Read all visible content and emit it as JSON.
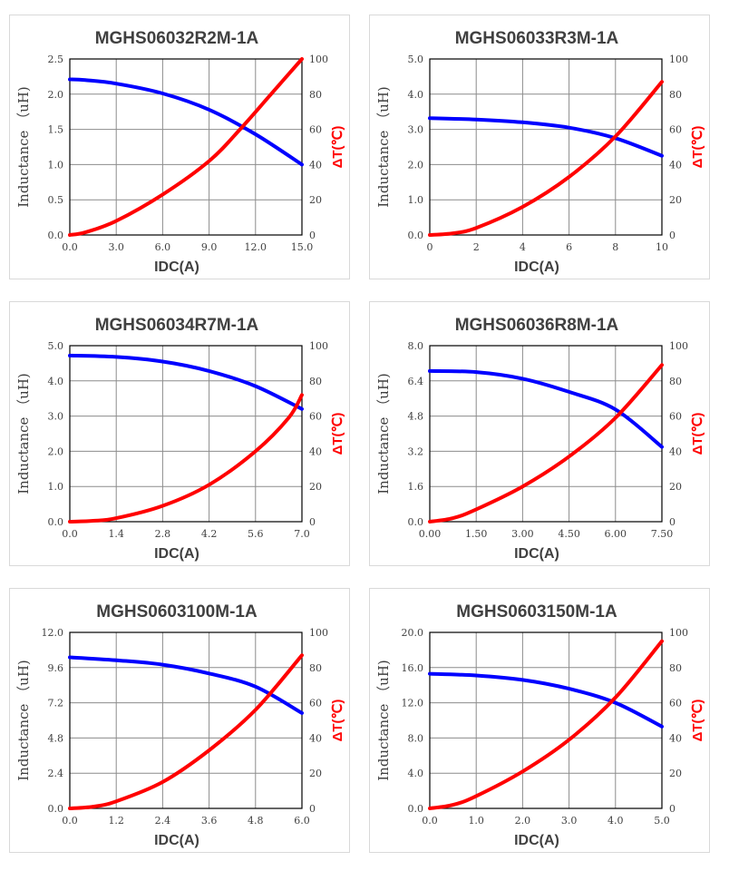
{
  "chart_data": [
    {
      "type": "line",
      "title": "MGHS06032R2M-1A",
      "xlabel": "IDC(A)",
      "ylabel": "Inductance （uH)",
      "y2label": "ΔT(℃)",
      "xticks": [
        "0.0",
        "3.0",
        "6.0",
        "9.0",
        "12.0",
        "15.0"
      ],
      "yticks": [
        "0.0",
        "0.5",
        "1.0",
        "1.5",
        "2.0",
        "2.5"
      ],
      "y2ticks": [
        "0",
        "20",
        "40",
        "60",
        "80",
        "100"
      ],
      "xlim": [
        0,
        15
      ],
      "ylim": [
        0,
        2.5
      ],
      "y2lim": [
        0,
        100
      ],
      "grid": true,
      "series": [
        {
          "axis": "left",
          "color": "#0000ff",
          "x": [
            0,
            1,
            3,
            6,
            9,
            12,
            15
          ],
          "y": [
            2.21,
            2.2,
            2.15,
            2.01,
            1.78,
            1.43,
            1.0
          ]
        },
        {
          "axis": "right",
          "color": "#ff0000",
          "x": [
            0,
            1,
            3,
            6,
            9,
            11,
            13,
            15
          ],
          "y": [
            0,
            1.5,
            8,
            23,
            42,
            60,
            80,
            100
          ]
        }
      ]
    },
    {
      "type": "line",
      "title": "MGHS06033R3M-1A",
      "xlabel": "IDC(A)",
      "ylabel": "Inductance （uH)",
      "y2label": "ΔT(℃)",
      "xticks": [
        "0",
        "2",
        "4",
        "6",
        "8",
        "10"
      ],
      "yticks": [
        "0.0",
        "1.0",
        "2.0",
        "3.0",
        "4.0",
        "5.0"
      ],
      "y2ticks": [
        "0",
        "20",
        "40",
        "60",
        "80",
        "100"
      ],
      "xlim": [
        0,
        10
      ],
      "ylim": [
        0,
        5
      ],
      "y2lim": [
        0,
        100
      ],
      "grid": true,
      "series": [
        {
          "axis": "left",
          "color": "#0000ff",
          "x": [
            0,
            2,
            4,
            6,
            8,
            10
          ],
          "y": [
            3.32,
            3.28,
            3.2,
            3.05,
            2.75,
            2.25
          ]
        },
        {
          "axis": "right",
          "color": "#ff0000",
          "x": [
            0,
            1,
            2,
            4,
            6,
            8,
            10
          ],
          "y": [
            0,
            1,
            4,
            16,
            33,
            56,
            87
          ]
        }
      ]
    },
    {
      "type": "line",
      "title": "MGHS06034R7M-1A",
      "xlabel": "IDC(A)",
      "ylabel": "Inductance （uH)",
      "y2label": "ΔT(℃)",
      "xticks": [
        "0.0",
        "1.4",
        "2.8",
        "4.2",
        "5.6",
        "7.0"
      ],
      "yticks": [
        "0.0",
        "1.0",
        "2.0",
        "3.0",
        "4.0",
        "5.0"
      ],
      "y2ticks": [
        "0",
        "20",
        "40",
        "60",
        "80",
        "100"
      ],
      "xlim": [
        0,
        7
      ],
      "ylim": [
        0,
        5
      ],
      "y2lim": [
        0,
        100
      ],
      "grid": true,
      "series": [
        {
          "axis": "left",
          "color": "#0000ff",
          "x": [
            0,
            1.4,
            2.8,
            4.2,
            5.6,
            7.0
          ],
          "y": [
            4.72,
            4.68,
            4.55,
            4.28,
            3.85,
            3.2
          ]
        },
        {
          "axis": "right",
          "color": "#ff0000",
          "x": [
            0,
            0.7,
            1.4,
            2.8,
            4.2,
            5.6,
            6.6,
            7.0
          ],
          "y": [
            0,
            0.5,
            2,
            9,
            21,
            40,
            59,
            72
          ]
        }
      ]
    },
    {
      "type": "line",
      "title": "MGHS06036R8M-1A",
      "xlabel": "IDC(A)",
      "ylabel": "Inductance （uH)",
      "y2label": "ΔT(℃)",
      "xticks": [
        "0.00",
        "1.50",
        "3.00",
        "4.50",
        "6.00",
        "7.50"
      ],
      "yticks": [
        "0.0",
        "1.6",
        "3.2",
        "4.8",
        "6.4",
        "8.0"
      ],
      "y2ticks": [
        "0",
        "20",
        "40",
        "60",
        "80",
        "100"
      ],
      "xlim": [
        0,
        7.5
      ],
      "ylim": [
        0,
        8
      ],
      "y2lim": [
        0,
        100
      ],
      "grid": true,
      "series": [
        {
          "axis": "left",
          "color": "#0000ff",
          "x": [
            0,
            1.5,
            3,
            4.5,
            6,
            7.5
          ],
          "y": [
            6.85,
            6.8,
            6.5,
            5.9,
            5.1,
            3.4
          ]
        },
        {
          "axis": "right",
          "color": "#ff0000",
          "x": [
            0,
            0.75,
            1.5,
            3,
            4.5,
            6,
            7.5
          ],
          "y": [
            0,
            2,
            7,
            20,
            37,
            59,
            89
          ]
        }
      ]
    },
    {
      "type": "line",
      "title": "MGHS0603100M-1A",
      "xlabel": "IDC(A)",
      "ylabel": "Inductance （uH)",
      "y2label": "ΔT(℃)",
      "xticks": [
        "0.0",
        "1.2",
        "2.4",
        "3.6",
        "4.8",
        "6.0"
      ],
      "yticks": [
        "0.0",
        "2.4",
        "4.8",
        "7.2",
        "9.6",
        "12.0"
      ],
      "y2ticks": [
        "0",
        "20",
        "40",
        "60",
        "80",
        "100"
      ],
      "xlim": [
        0,
        6
      ],
      "ylim": [
        0,
        12
      ],
      "y2lim": [
        0,
        100
      ],
      "grid": true,
      "series": [
        {
          "axis": "left",
          "color": "#0000ff",
          "x": [
            0,
            1.2,
            2.4,
            3.6,
            4.8,
            6.0
          ],
          "y": [
            10.3,
            10.1,
            9.8,
            9.2,
            8.3,
            6.5
          ]
        },
        {
          "axis": "right",
          "color": "#ff0000",
          "x": [
            0,
            0.6,
            1.2,
            2.4,
            3.6,
            4.8,
            6.0
          ],
          "y": [
            0,
            1,
            4,
            15,
            33,
            56,
            87
          ]
        }
      ]
    },
    {
      "type": "line",
      "title": "MGHS0603150M-1A",
      "xlabel": "IDC(A)",
      "ylabel": "Inductance （uH)",
      "y2label": "ΔT(℃)",
      "xticks": [
        "0.0",
        "1.0",
        "2.0",
        "3.0",
        "4.0",
        "5.0"
      ],
      "yticks": [
        "0.0",
        "4.0",
        "8.0",
        "12.0",
        "16.0",
        "20.0"
      ],
      "y2ticks": [
        "0",
        "20",
        "40",
        "60",
        "80",
        "100"
      ],
      "xlim": [
        0,
        5
      ],
      "ylim": [
        0,
        20
      ],
      "y2lim": [
        0,
        100
      ],
      "grid": true,
      "series": [
        {
          "axis": "left",
          "color": "#0000ff",
          "x": [
            0,
            1,
            2,
            3,
            4,
            5
          ],
          "y": [
            15.3,
            15.1,
            14.6,
            13.6,
            12.0,
            9.3
          ]
        },
        {
          "axis": "right",
          "color": "#ff0000",
          "x": [
            0,
            0.5,
            1,
            2,
            3,
            4,
            5
          ],
          "y": [
            0,
            2,
            7,
            21,
            39,
            63,
            95
          ]
        }
      ]
    }
  ]
}
